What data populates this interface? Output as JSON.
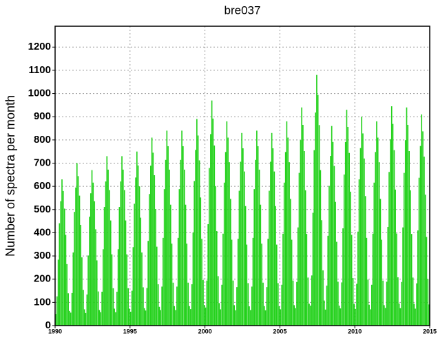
{
  "chart_data": {
    "type": "bar",
    "title": "bre037",
    "ylabel": "Number of spectra per month",
    "color": "#22d11a",
    "grid": true,
    "xlim": [
      1990,
      2015
    ],
    "xticks": [
      1990,
      1995,
      2000,
      2005,
      2010,
      2015
    ],
    "ylim": [
      0,
      1290
    ],
    "yticks": [
      0,
      100,
      200,
      300,
      400,
      500,
      600,
      700,
      800,
      900,
      1000,
      1100,
      1200
    ],
    "x": [
      1990.04,
      1990.13,
      1990.21,
      1990.29,
      1990.38,
      1990.46,
      1990.54,
      1990.63,
      1990.71,
      1990.79,
      1990.88,
      1990.96,
      1991.04,
      1991.13,
      1991.21,
      1991.29,
      1991.38,
      1991.46,
      1991.54,
      1991.63,
      1991.71,
      1991.79,
      1991.88,
      1991.96,
      1992.04,
      1992.13,
      1992.21,
      1992.29,
      1992.38,
      1992.46,
      1992.54,
      1992.63,
      1992.71,
      1992.79,
      1992.88,
      1992.96,
      1993.04,
      1993.13,
      1993.21,
      1993.29,
      1993.38,
      1993.46,
      1993.54,
      1993.63,
      1993.71,
      1993.79,
      1993.88,
      1993.96,
      1994.04,
      1994.13,
      1994.21,
      1994.29,
      1994.38,
      1994.46,
      1994.54,
      1994.63,
      1994.71,
      1994.79,
      1994.88,
      1994.96,
      1995.04,
      1995.13,
      1995.21,
      1995.29,
      1995.38,
      1995.46,
      1995.54,
      1995.63,
      1995.71,
      1995.79,
      1995.88,
      1995.96,
      1996.04,
      1996.13,
      1996.21,
      1996.29,
      1996.38,
      1996.46,
      1996.54,
      1996.63,
      1996.71,
      1996.79,
      1996.88,
      1996.96,
      1997.04,
      1997.13,
      1997.21,
      1997.29,
      1997.38,
      1997.46,
      1997.54,
      1997.63,
      1997.71,
      1997.79,
      1997.88,
      1997.96,
      1998.04,
      1998.13,
      1998.21,
      1998.29,
      1998.38,
      1998.46,
      1998.54,
      1998.63,
      1998.71,
      1998.79,
      1998.88,
      1998.96,
      1999.04,
      1999.13,
      1999.21,
      1999.29,
      1999.38,
      1999.46,
      1999.54,
      1999.63,
      1999.71,
      1999.79,
      1999.88,
      1999.96,
      2000.04,
      2000.13,
      2000.21,
      2000.29,
      2000.38,
      2000.46,
      2000.54,
      2000.63,
      2000.71,
      2000.79,
      2000.88,
      2000.96,
      2001.04,
      2001.13,
      2001.21,
      2001.29,
      2001.38,
      2001.46,
      2001.54,
      2001.63,
      2001.71,
      2001.79,
      2001.88,
      2001.96,
      2002.04,
      2002.13,
      2002.21,
      2002.29,
      2002.38,
      2002.46,
      2002.54,
      2002.63,
      2002.71,
      2002.79,
      2002.88,
      2002.96,
      2003.04,
      2003.13,
      2003.21,
      2003.29,
      2003.38,
      2003.46,
      2003.54,
      2003.63,
      2003.71,
      2003.79,
      2003.88,
      2003.96,
      2004.04,
      2004.13,
      2004.21,
      2004.29,
      2004.38,
      2004.46,
      2004.54,
      2004.63,
      2004.71,
      2004.79,
      2004.88,
      2004.96,
      2005.04,
      2005.13,
      2005.21,
      2005.29,
      2005.38,
      2005.46,
      2005.54,
      2005.63,
      2005.71,
      2005.79,
      2005.88,
      2005.96,
      2006.04,
      2006.13,
      2006.21,
      2006.29,
      2006.38,
      2006.46,
      2006.54,
      2006.63,
      2006.71,
      2006.79,
      2006.88,
      2006.96,
      2007.04,
      2007.13,
      2007.21,
      2007.29,
      2007.38,
      2007.46,
      2007.54,
      2007.63,
      2007.71,
      2007.79,
      2007.88,
      2007.96,
      2008.04,
      2008.13,
      2008.21,
      2008.29,
      2008.38,
      2008.46,
      2008.54,
      2008.63,
      2008.71,
      2008.79,
      2008.88,
      2008.96,
      2009.04,
      2009.13,
      2009.21,
      2009.29,
      2009.38,
      2009.46,
      2009.54,
      2009.63,
      2009.71,
      2009.79,
      2009.88,
      2009.96,
      2010.04,
      2010.13,
      2010.21,
      2010.29,
      2010.38,
      2010.46,
      2010.54,
      2010.63,
      2010.71,
      2010.79,
      2010.88,
      2010.96,
      2011.04,
      2011.13,
      2011.21,
      2011.29,
      2011.38,
      2011.46,
      2011.54,
      2011.63,
      2011.71,
      2011.79,
      2011.88,
      2011.96,
      2012.04,
      2012.13,
      2012.21,
      2012.29,
      2012.38,
      2012.46,
      2012.54,
      2012.63,
      2012.71,
      2012.79,
      2012.88,
      2012.96,
      2013.04,
      2013.13,
      2013.21,
      2013.29,
      2013.38,
      2013.46,
      2013.54,
      2013.63,
      2013.71,
      2013.79,
      2013.88,
      2013.96,
      2014.04,
      2014.13,
      2014.21,
      2014.29,
      2014.38,
      2014.46,
      2014.54,
      2014.63,
      2014.71,
      2014.79,
      2014.88,
      2014.96
    ],
    "values": [
      50,
      126,
      284,
      441,
      536,
      630,
      580,
      504,
      391,
      265,
      139,
      63,
      56,
      140,
      315,
      490,
      595,
      700,
      644,
      560,
      434,
      294,
      154,
      70,
      54,
      134,
      302,
      469,
      570,
      670,
      616,
      536,
      415,
      281,
      147,
      67,
      58,
      146,
      329,
      511,
      621,
      730,
      672,
      584,
      453,
      307,
      161,
      73,
      58,
      146,
      329,
      511,
      621,
      730,
      672,
      584,
      453,
      307,
      161,
      73,
      60,
      150,
      338,
      525,
      638,
      750,
      690,
      600,
      465,
      315,
      165,
      75,
      65,
      162,
      365,
      567,
      689,
      810,
      745,
      648,
      502,
      340,
      178,
      81,
      67,
      168,
      378,
      588,
      714,
      840,
      773,
      672,
      521,
      353,
      185,
      84,
      67,
      168,
      378,
      588,
      714,
      840,
      773,
      672,
      521,
      353,
      185,
      84,
      71,
      178,
      401,
      623,
      757,
      890,
      819,
      712,
      552,
      374,
      196,
      89,
      78,
      194,
      437,
      679,
      825,
      970,
      892,
      776,
      601,
      407,
      213,
      97,
      70,
      176,
      396,
      616,
      748,
      880,
      810,
      704,
      546,
      370,
      194,
      88,
      66,
      166,
      374,
      581,
      706,
      830,
      764,
      664,
      515,
      349,
      183,
      83,
      67,
      168,
      378,
      588,
      714,
      840,
      773,
      672,
      521,
      353,
      185,
      84,
      66,
      166,
      374,
      581,
      706,
      830,
      764,
      664,
      515,
      349,
      183,
      83,
      70,
      176,
      396,
      616,
      748,
      880,
      810,
      704,
      546,
      370,
      194,
      88,
      75,
      188,
      423,
      658,
      799,
      940,
      865,
      752,
      583,
      395,
      207,
      94,
      86,
      216,
      486,
      756,
      918,
      1080,
      994,
      864,
      670,
      454,
      238,
      108,
      69,
      172,
      387,
      602,
      731,
      860,
      791,
      688,
      533,
      361,
      189,
      86,
      74,
      186,
      419,
      651,
      791,
      930,
      856,
      744,
      577,
      391,
      205,
      93,
      72,
      180,
      405,
      630,
      765,
      900,
      828,
      720,
      558,
      378,
      198,
      90,
      70,
      176,
      396,
      616,
      748,
      880,
      810,
      704,
      546,
      370,
      194,
      88,
      76,
      189,
      425,
      662,
      803,
      945,
      869,
      756,
      586,
      397,
      208,
      95,
      75,
      188,
      423,
      658,
      799,
      940,
      865,
      752,
      583,
      395,
      207,
      94,
      73,
      182,
      410,
      637,
      774,
      910,
      837,
      728,
      564,
      382,
      200,
      91
    ]
  }
}
